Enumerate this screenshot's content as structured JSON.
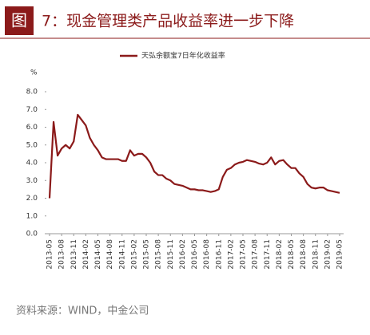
{
  "header": {
    "figure_label": "图",
    "title": "7：现金管理类产品收益率进一步下降"
  },
  "chart_data": {
    "type": "line",
    "unit": "%",
    "categories": [
      "2013-05",
      null,
      null,
      "2013-08",
      null,
      null,
      "2013-11",
      null,
      null,
      "2014-02",
      null,
      null,
      "2014-05",
      null,
      null,
      "2014-08",
      null,
      null,
      "2014-11",
      null,
      null,
      "2015-02",
      null,
      null,
      "2015-05",
      null,
      null,
      "2015-08",
      null,
      null,
      "2015-11",
      null,
      null,
      "2016-02",
      null,
      null,
      "2016-05",
      null,
      null,
      "2016-08",
      null,
      null,
      "2016-11",
      null,
      null,
      "2017-02",
      null,
      null,
      "2017-05",
      null,
      null,
      "2017-08",
      null,
      null,
      "2017-11",
      null,
      null,
      "2018-02",
      null,
      null,
      "2018-05",
      null,
      null,
      "2018-08",
      null,
      null,
      "2018-11",
      null,
      null,
      "2019-02",
      null,
      null,
      "2019-05"
    ],
    "series": [
      {
        "name": "天弘余额宝7日年化收益率",
        "color": "#8b1a1a",
        "values": [
          2.0,
          6.3,
          4.4,
          4.8,
          5.0,
          4.8,
          5.2,
          6.7,
          6.4,
          6.1,
          5.4,
          5.0,
          4.7,
          4.3,
          4.2,
          4.2,
          4.2,
          4.2,
          4.1,
          4.1,
          4.7,
          4.4,
          4.5,
          4.5,
          4.3,
          4.0,
          3.5,
          3.3,
          3.3,
          3.1,
          3.0,
          2.8,
          2.75,
          2.7,
          2.6,
          2.5,
          2.5,
          2.45,
          2.45,
          2.4,
          2.35,
          2.4,
          2.5,
          3.2,
          3.6,
          3.7,
          3.9,
          4.0,
          4.05,
          4.15,
          4.1,
          4.05,
          3.95,
          3.9,
          4.0,
          4.3,
          3.9,
          4.1,
          4.15,
          3.9,
          3.7,
          3.7,
          3.4,
          3.2,
          2.8,
          2.6,
          2.55,
          2.6,
          2.6,
          2.45,
          2.4,
          2.35,
          2.3
        ]
      }
    ],
    "ylim": [
      0,
      8
    ],
    "yticks": [
      {
        "value": 0,
        "label": "0.0"
      },
      {
        "value": 1,
        "label": "1.0"
      },
      {
        "value": 2,
        "label": "2.0"
      },
      {
        "value": 3,
        "label": "3.0"
      },
      {
        "value": 4,
        "label": "4.0"
      },
      {
        "value": 5,
        "label": "5.0"
      },
      {
        "value": 6,
        "label": "6.0"
      },
      {
        "value": 7,
        "label": "7.0"
      },
      {
        "value": 8,
        "label": "8.0"
      }
    ],
    "grid": false
  },
  "source": "资料来源：WIND，中金公司"
}
